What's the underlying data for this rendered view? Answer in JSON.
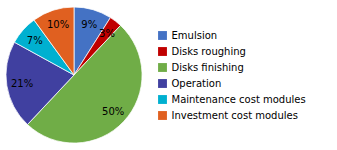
{
  "chart_data": {
    "type": "pie",
    "categories": [
      "Emulsion",
      "Disks roughing",
      "Disks finishing",
      "Operation",
      "Maintenance cost modules",
      "Investment cost modules"
    ],
    "values": [
      9,
      3,
      50,
      21,
      7,
      10
    ],
    "value_labels": [
      "9%",
      "3%",
      "50%",
      "21%",
      "7%",
      "10%"
    ],
    "colors": [
      "#4472C4",
      "#C00000",
      "#70AD47",
      "#4040A0",
      "#00B0D0",
      "#E06020"
    ],
    "data_labels": true,
    "legend": "right"
  }
}
